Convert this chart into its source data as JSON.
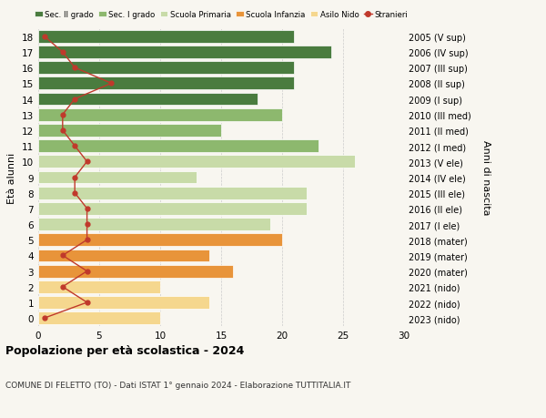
{
  "ages": [
    0,
    1,
    2,
    3,
    4,
    5,
    6,
    7,
    8,
    9,
    10,
    11,
    12,
    13,
    14,
    15,
    16,
    17,
    18
  ],
  "bar_values": [
    10,
    14,
    10,
    16,
    14,
    20,
    19,
    22,
    22,
    13,
    26,
    23,
    15,
    20,
    18,
    21,
    21,
    24,
    21
  ],
  "bar_colors": [
    "#f5d78e",
    "#f5d78e",
    "#f5d78e",
    "#e8943a",
    "#e8943a",
    "#e8943a",
    "#c8dba8",
    "#c8dba8",
    "#c8dba8",
    "#c8dba8",
    "#c8dba8",
    "#8db86e",
    "#8db86e",
    "#8db86e",
    "#4a7c3f",
    "#4a7c3f",
    "#4a7c3f",
    "#4a7c3f",
    "#4a7c3f"
  ],
  "stranieri_values": [
    0.5,
    4,
    2,
    4,
    2,
    4,
    4,
    4,
    3,
    3,
    4,
    3,
    2,
    2,
    3,
    6,
    3,
    2,
    0.5
  ],
  "right_labels": [
    "2023 (nido)",
    "2022 (nido)",
    "2021 (nido)",
    "2020 (mater)",
    "2019 (mater)",
    "2018 (mater)",
    "2017 (I ele)",
    "2016 (II ele)",
    "2015 (III ele)",
    "2014 (IV ele)",
    "2013 (V ele)",
    "2012 (I med)",
    "2011 (II med)",
    "2010 (III med)",
    "2009 (I sup)",
    "2008 (II sup)",
    "2007 (III sup)",
    "2006 (IV sup)",
    "2005 (V sup)"
  ],
  "legend_labels": [
    "Sec. II grado",
    "Sec. I grado",
    "Scuola Primaria",
    "Scuola Infanzia",
    "Asilo Nido",
    "Stranieri"
  ],
  "legend_colors": [
    "#4a7c3f",
    "#8db86e",
    "#c8dba8",
    "#e8943a",
    "#f5d78e",
    "#c0392b"
  ],
  "ylabel_left": "Età alunni",
  "ylabel_right": "Anni di nascita",
  "title": "Popolazione per età scolastica - 2024",
  "subtitle": "COMUNE DI FELETTO (TO) - Dati ISTAT 1° gennaio 2024 - Elaborazione TUTTITALIA.IT",
  "xlim": [
    0,
    30
  ],
  "background_color": "#f8f6f0"
}
